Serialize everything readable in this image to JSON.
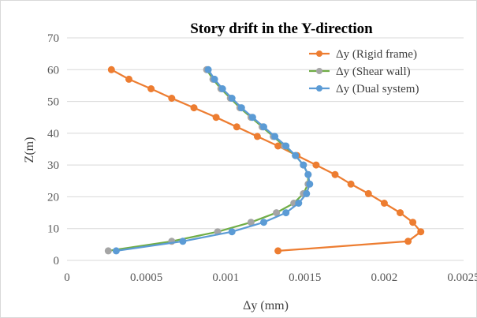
{
  "chart_data": {
    "type": "line",
    "title": "Story drift in the Y-direction",
    "xlabel": "Δy (mm)",
    "ylabel": "Z(m)",
    "xlim": [
      0,
      0.0025
    ],
    "ylim": [
      0,
      70
    ],
    "x_ticks": [
      "0",
      "0.0005",
      "0.001",
      "0.0015",
      "0.002",
      "0.0025"
    ],
    "y_ticks": [
      "0",
      "10",
      "20",
      "30",
      "40",
      "50",
      "60",
      "70"
    ],
    "grid": "horizontal",
    "legend_position": "top-right",
    "series": [
      {
        "name": "Δy (Rigid frame)",
        "color": "#ED7D31",
        "points": [
          [
            0.00133,
            3
          ],
          [
            0.00215,
            6
          ],
          [
            0.00223,
            9
          ],
          [
            0.00218,
            12
          ],
          [
            0.0021,
            15
          ],
          [
            0.002,
            18
          ],
          [
            0.0019,
            21
          ],
          [
            0.00179,
            24
          ],
          [
            0.00169,
            27
          ],
          [
            0.00157,
            30
          ],
          [
            0.00145,
            33
          ],
          [
            0.00133,
            36
          ],
          [
            0.0012,
            39
          ],
          [
            0.00107,
            42
          ],
          [
            0.00094,
            45
          ],
          [
            0.0008,
            48
          ],
          [
            0.00066,
            51
          ],
          [
            0.00053,
            54
          ],
          [
            0.00039,
            57
          ],
          [
            0.00028,
            60
          ]
        ]
      },
      {
        "name": "Δy (Shear wall)",
        "color": "#A5A5A5",
        "line_color": "#70AD47",
        "points": [
          [
            0.00026,
            3
          ],
          [
            0.00066,
            6
          ],
          [
            0.00095,
            9
          ],
          [
            0.00116,
            12
          ],
          [
            0.00132,
            15
          ],
          [
            0.00143,
            18
          ],
          [
            0.00149,
            21
          ],
          [
            0.00152,
            24
          ],
          [
            0.00152,
            27
          ],
          [
            0.00149,
            30
          ],
          [
            0.00144,
            33
          ],
          [
            0.00137,
            36
          ],
          [
            0.0013,
            39
          ],
          [
            0.00123,
            42
          ],
          [
            0.00116,
            45
          ],
          [
            0.00109,
            48
          ],
          [
            0.00103,
            51
          ],
          [
            0.00097,
            54
          ],
          [
            0.00092,
            57
          ],
          [
            0.00088,
            60
          ]
        ]
      },
      {
        "name": "Δy (Dual system)",
        "color": "#5B9BD5",
        "points": [
          [
            0.00031,
            3
          ],
          [
            0.00073,
            6
          ],
          [
            0.00104,
            9
          ],
          [
            0.00124,
            12
          ],
          [
            0.00138,
            15
          ],
          [
            0.00146,
            18
          ],
          [
            0.00151,
            21
          ],
          [
            0.00153,
            24
          ],
          [
            0.00152,
            27
          ],
          [
            0.00149,
            30
          ],
          [
            0.00144,
            33
          ],
          [
            0.00138,
            36
          ],
          [
            0.00131,
            39
          ],
          [
            0.00124,
            42
          ],
          [
            0.00117,
            45
          ],
          [
            0.0011,
            48
          ],
          [
            0.00104,
            51
          ],
          [
            0.00098,
            54
          ],
          [
            0.00093,
            57
          ],
          [
            0.00089,
            60
          ]
        ]
      }
    ]
  }
}
